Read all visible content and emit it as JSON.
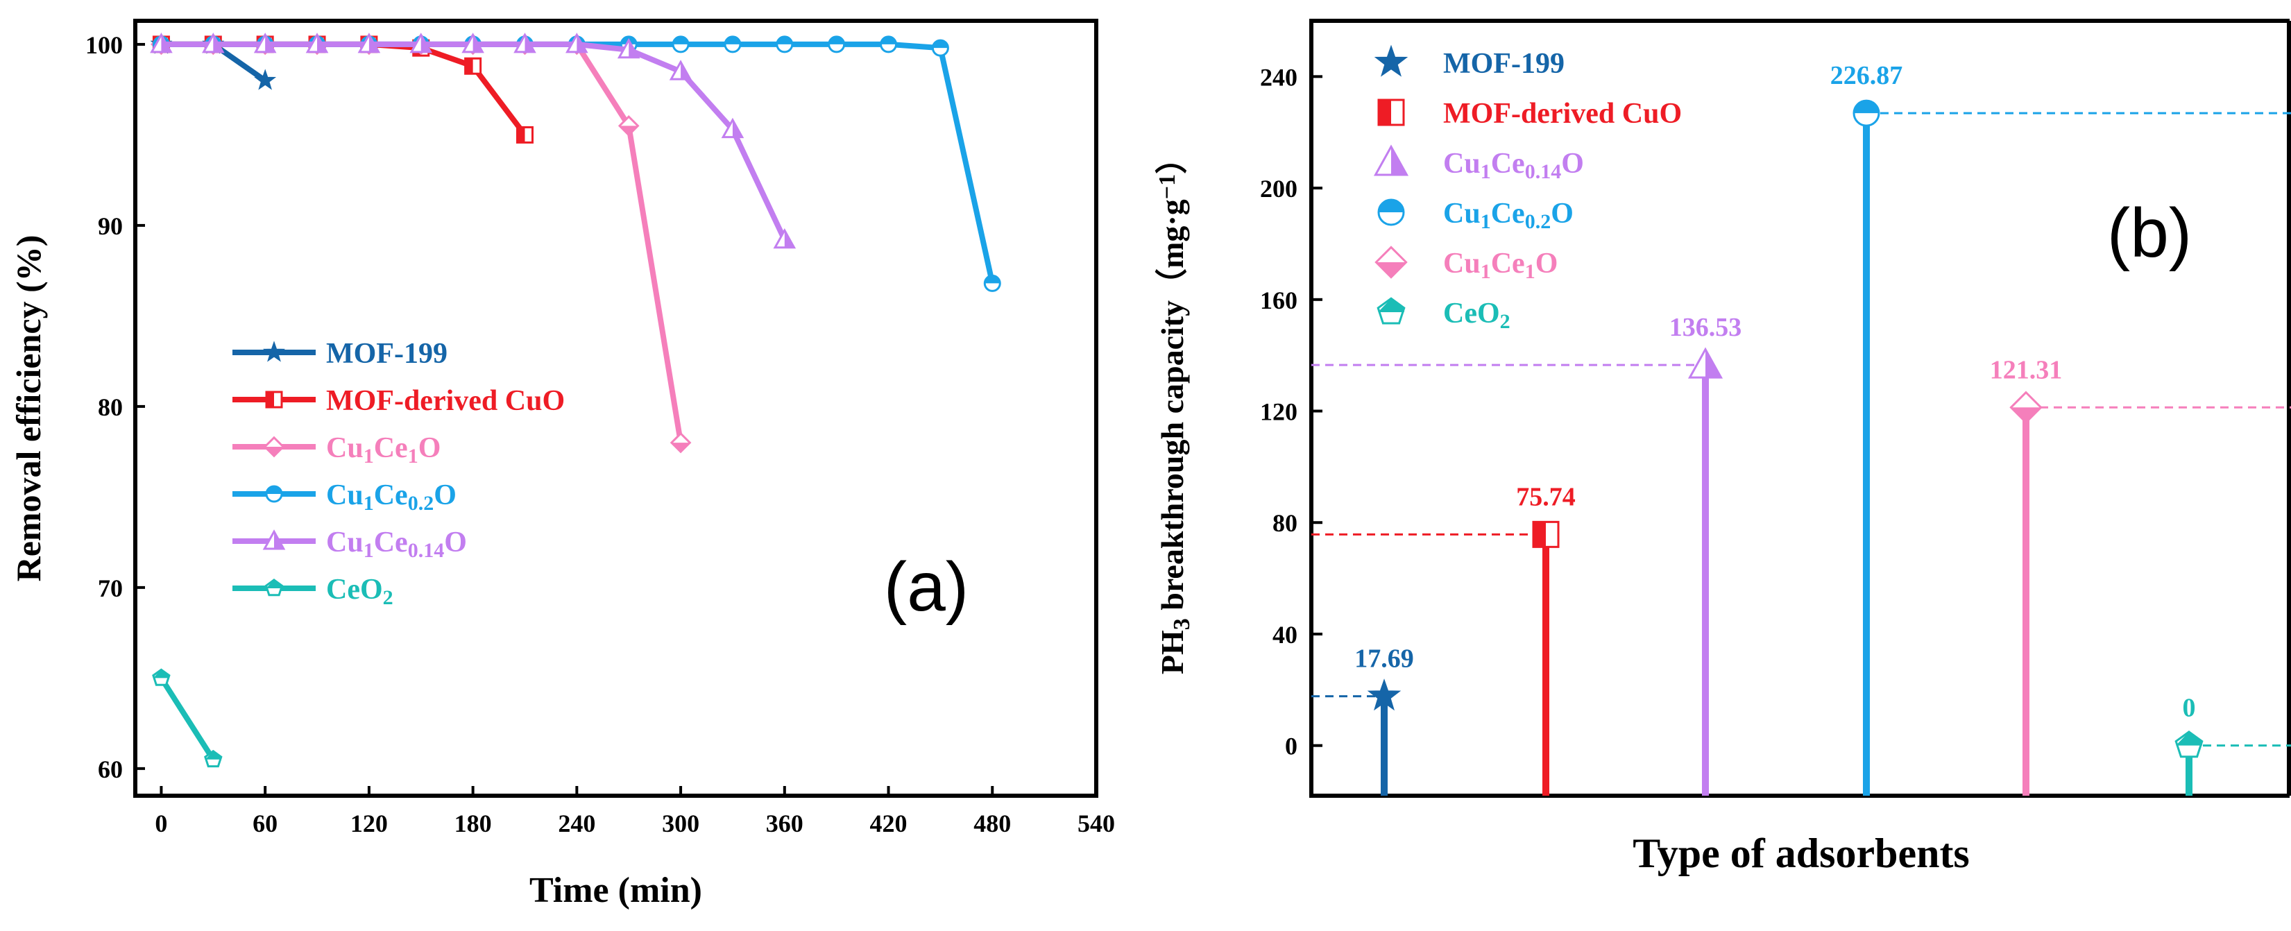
{
  "colors": {
    "mof199": "#1565a8",
    "cuo": "#ee1c25",
    "ce014": "#c27ef0",
    "ce02": "#1aa3e8",
    "ce1": "#f57fbb",
    "ceo2": "#1bbdb6"
  },
  "chart_data": [
    {
      "type": "line",
      "panel_label": "(a)",
      "xlabel": "Time (min)",
      "ylabel": "Removal efficiency (%)",
      "xlim": [
        -15,
        540
      ],
      "ylim": [
        58.5,
        101.3
      ],
      "xticks": [
        0,
        60,
        120,
        180,
        240,
        300,
        360,
        420,
        480,
        540
      ],
      "yticks": [
        60,
        70,
        80,
        90,
        100
      ],
      "legend_position": "center-left",
      "series": [
        {
          "key": "mof199",
          "name": "MOF-199",
          "sub": "",
          "suffix": "",
          "marker": "star",
          "x": [
            0,
            30,
            60
          ],
          "y": [
            100,
            100,
            98
          ]
        },
        {
          "key": "cuo",
          "name": "MOF-derived CuO",
          "sub": "",
          "suffix": "",
          "marker": "square-half",
          "x": [
            0,
            30,
            60,
            90,
            120,
            150,
            180,
            210
          ],
          "y": [
            100,
            100,
            100,
            100,
            100,
            99.8,
            98.8,
            95
          ]
        },
        {
          "key": "ce1",
          "name": "Cu",
          "sub": "1",
          "mid": "Ce",
          "sub2": "1",
          "suffix": "O",
          "marker": "diamond-half",
          "x": [
            0,
            30,
            60,
            90,
            120,
            150,
            180,
            210,
            240,
            270,
            300
          ],
          "y": [
            100,
            100,
            100,
            100,
            100,
            100,
            100,
            100,
            100,
            95.5,
            78
          ]
        },
        {
          "key": "ce02",
          "name": "Cu",
          "sub": "1",
          "mid": "Ce",
          "sub2": "0.2",
          "suffix": "O",
          "marker": "circle-half",
          "x": [
            0,
            30,
            60,
            90,
            120,
            150,
            180,
            210,
            240,
            270,
            300,
            330,
            360,
            390,
            420,
            450,
            480
          ],
          "y": [
            100,
            100,
            100,
            100,
            100,
            100,
            100,
            100,
            100,
            100,
            100,
            100,
            100,
            100,
            100,
            99.8,
            86.8
          ]
        },
        {
          "key": "ce014",
          "name": "Cu",
          "sub": "1",
          "mid": "Ce",
          "sub2": "0.14",
          "suffix": "O",
          "marker": "triangle-half",
          "x": [
            0,
            30,
            60,
            90,
            120,
            150,
            180,
            210,
            240,
            270,
            300,
            330,
            360
          ],
          "y": [
            100,
            100,
            100,
            100,
            100,
            100,
            100,
            100,
            100,
            99.7,
            98.5,
            95.3,
            89.2
          ]
        },
        {
          "key": "ceo2",
          "name": "CeO",
          "sub": "2",
          "suffix": "",
          "marker": "pentagon-half",
          "x": [
            0,
            30
          ],
          "y": [
            65,
            60.5
          ]
        }
      ]
    },
    {
      "type": "bar",
      "panel_label": "(b)",
      "xlabel": "Type of adsorbents",
      "ylabel_parts": [
        "PH",
        "3",
        " breakthrough capacity（mg·g",
        "−1",
        "）"
      ],
      "ylim": [
        -18,
        260
      ],
      "yticks": [
        0,
        40,
        80,
        120,
        160,
        200,
        240
      ],
      "legend_position": "top-left",
      "categories": [
        {
          "key": "mof199",
          "name": "MOF-199",
          "sub": "",
          "suffix": "",
          "marker": "star",
          "value": 17.69,
          "label": "17.69"
        },
        {
          "key": "cuo",
          "name": "MOF-derived CuO",
          "sub": "",
          "suffix": "",
          "marker": "square-half",
          "value": 75.74,
          "label": "75.74"
        },
        {
          "key": "ce014",
          "name": "Cu",
          "sub": "1",
          "mid": "Ce",
          "sub2": "0.14",
          "suffix": "O",
          "marker": "triangle-half",
          "value": 136.53,
          "label": "136.53"
        },
        {
          "key": "ce02",
          "name": "Cu",
          "sub": "1",
          "mid": "Ce",
          "sub2": "0.2",
          "suffix": "O",
          "marker": "circle-half",
          "value": 226.87,
          "label": "226.87"
        },
        {
          "key": "ce1",
          "name": "Cu",
          "sub": "1",
          "mid": "Ce",
          "sub2": "1",
          "suffix": "O",
          "marker": "diamond-half",
          "value": 121.31,
          "label": "121.31"
        },
        {
          "key": "ceo2",
          "name": "CeO",
          "sub": "2",
          "suffix": "",
          "marker": "pentagon-half",
          "value": 0,
          "label": "0"
        }
      ]
    }
  ]
}
